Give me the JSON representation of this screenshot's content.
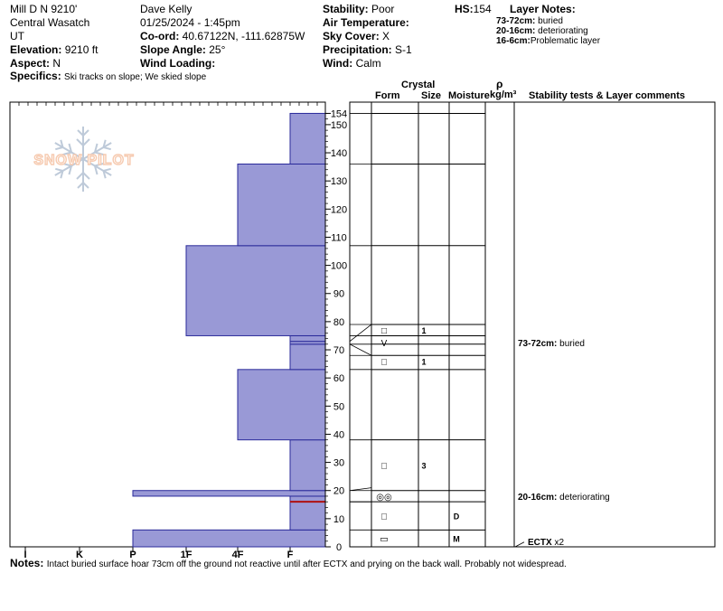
{
  "header": {
    "location": "Mill D N 9210'",
    "range": "Central Wasatch",
    "state": "UT",
    "elevation_label": "Elevation:",
    "elevation": "9210 ft",
    "aspect_label": "Aspect:",
    "aspect": "N",
    "specifics_label": "Specifics:",
    "specifics": "Ski tracks on slope; We skied slope",
    "observer": "Dave Kelly",
    "datetime": "01/25/2024 - 1:45pm",
    "coord_label": "Co-ord:",
    "coord": "40.67122N, -111.62875W",
    "slope_label": "Slope Angle:",
    "slope": "25°",
    "wind_loading_label": "Wind Loading:",
    "wind_loading": "",
    "stability_label": "Stability:",
    "stability": "Poor",
    "air_temp_label": "Air Temperature:",
    "air_temp": "",
    "sky_label": "Sky Cover:",
    "sky": "X",
    "precip_label": "Precipitation:",
    "precip": "S-1",
    "wind_label": "Wind:",
    "wind": "Calm",
    "hs_label": "HS:",
    "hs": "154",
    "layer_notes_label": "Layer Notes:",
    "layer_notes": [
      {
        "range": "73-72cm:",
        "text": "buried"
      },
      {
        "range": "20-16cm:",
        "text": "deteriorating"
      },
      {
        "range": "16-6cm:",
        "text": "Problematic layer"
      }
    ]
  },
  "logo_text": "SNOW PILOT",
  "notes_label": "Notes:",
  "notes": "Intact buried surface hoar 73cm off the ground not reactive until after ECTX and prying on the back wall.  Probably not widespread.",
  "columns": {
    "crystal": "Crystal",
    "form": "Form",
    "size": "Size",
    "moisture": "Moisture",
    "rho": "ρ",
    "density_unit": "kg/m³",
    "stability": "Stability tests & Layer comments"
  },
  "chart_data": {
    "type": "snow-profile",
    "hardness_axis": [
      "I",
      "K",
      "P",
      "1F",
      "4F",
      "F"
    ],
    "height_axis": {
      "min": 0,
      "max": 154,
      "ticks": [
        0,
        10,
        20,
        30,
        40,
        50,
        60,
        70,
        80,
        90,
        100,
        110,
        120,
        130,
        140,
        150,
        154
      ]
    },
    "hardness_profile": [
      {
        "bottom": 0,
        "top": 6,
        "hardness": "P"
      },
      {
        "bottom": 6,
        "top": 16,
        "hardness": "F"
      },
      {
        "bottom": 16,
        "top": 18,
        "hardness": "F"
      },
      {
        "bottom": 18,
        "top": 20,
        "hardness": "P"
      },
      {
        "bottom": 20,
        "top": 38,
        "hardness": "F"
      },
      {
        "bottom": 38,
        "top": 63,
        "hardness": "4F"
      },
      {
        "bottom": 63,
        "top": 72,
        "hardness": "F"
      },
      {
        "bottom": 72,
        "top": 73,
        "hardness": "F"
      },
      {
        "bottom": 73,
        "top": 75,
        "hardness": "F"
      },
      {
        "bottom": 75,
        "top": 107,
        "hardness": "1F"
      },
      {
        "bottom": 107,
        "top": 136,
        "hardness": "4F"
      },
      {
        "bottom": 136,
        "top": 154,
        "hardness": "F"
      }
    ],
    "layer_boundaries": [
      6,
      16,
      20,
      38,
      63,
      68,
      72,
      75,
      79,
      107,
      136,
      154
    ],
    "layers": [
      {
        "height": 77,
        "form": "□",
        "size": "1",
        "moisture": ""
      },
      {
        "height": 72.5,
        "form": "V",
        "size": "",
        "moisture": ""
      },
      {
        "height": 66,
        "form": "□",
        "size": "1",
        "moisture": ""
      },
      {
        "height": 29,
        "form": "□",
        "size": "3",
        "moisture": ""
      },
      {
        "height": 18,
        "form": "◎◎",
        "size": "",
        "moisture": ""
      },
      {
        "height": 11,
        "form": "□",
        "size": "",
        "moisture": "D"
      },
      {
        "height": 3,
        "form": "▭",
        "size": "",
        "moisture": "M"
      }
    ],
    "comments": [
      {
        "height": 72.5,
        "text": "73-72cm: buried"
      },
      {
        "height": 18,
        "text": "20-16cm: deteriorating"
      },
      {
        "height": 2,
        "text": "ECTX x2"
      }
    ],
    "colors": {
      "fill": "#9999d6",
      "stroke": "#2a2a9a",
      "weak_layer": "#b01010"
    }
  }
}
